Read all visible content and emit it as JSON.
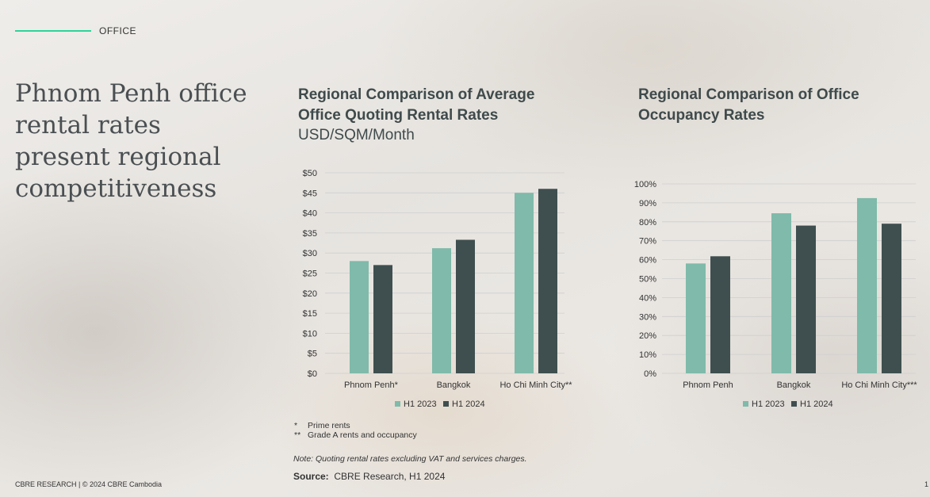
{
  "section": "OFFICE",
  "headline": "Phnom Penh office rental rates present regional competitiveness",
  "colors": {
    "h1_2023": "#7fbaaa",
    "h1_2024": "#3f4f4f",
    "accent": "#2ed39a"
  },
  "chart_data": [
    {
      "type": "bar",
      "title": "Regional Comparison of Average Office Quoting Rental Rates",
      "subtitle": "USD/SQM/Month",
      "categories": [
        "Phnom Penh*",
        "Bangkok",
        "Ho Chi Minh City**"
      ],
      "series": [
        {
          "name": "H1 2023",
          "values": [
            28,
            31.2,
            45
          ]
        },
        {
          "name": "H1 2024",
          "values": [
            27,
            33.3,
            46
          ]
        }
      ],
      "ylim": [
        0,
        50
      ],
      "yticks": [
        "$0",
        "$5",
        "$10",
        "$15",
        "$20",
        "$25",
        "$30",
        "$35",
        "$40",
        "$45",
        "$50"
      ],
      "legend": "bottom"
    },
    {
      "type": "bar",
      "title": "Regional Comparison of Office Occupancy Rates",
      "categories": [
        "Phnom Penh",
        "Bangkok",
        "Ho Chi Minh City***"
      ],
      "series": [
        {
          "name": "H1 2023",
          "values": [
            58,
            84.5,
            92.5
          ]
        },
        {
          "name": "H1 2024",
          "values": [
            61.8,
            78,
            79
          ]
        }
      ],
      "ylim": [
        0,
        100
      ],
      "yticks": [
        "0%",
        "10%",
        "20%",
        "30%",
        "40%",
        "50%",
        "60%",
        "70%",
        "80%",
        "90%",
        "100%"
      ],
      "legend": "bottom"
    }
  ],
  "footnotes": [
    {
      "mark": "*",
      "text": "Prime rents"
    },
    {
      "mark": "**",
      "text": "Grade A rents and occupancy"
    }
  ],
  "note": "Note: Quoting rental rates excluding VAT and services charges.",
  "source": {
    "label": "Source:",
    "text": "CBRE Research, H1 2024"
  },
  "footer": "CBRE RESEARCH | © 2024 CBRE Cambodia",
  "page_number": "1"
}
